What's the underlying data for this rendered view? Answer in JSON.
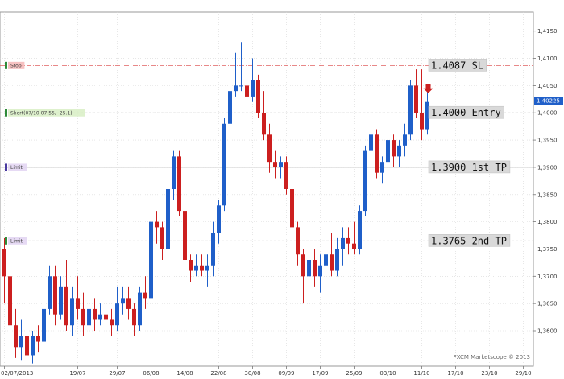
{
  "chart_data": {
    "type": "candlestick",
    "title": "",
    "watermark": "FXCM Marketscope © 2013",
    "ylim": [
      1.3535,
      1.4185
    ],
    "y_ticks": [
      1.36,
      1.365,
      1.37,
      1.375,
      1.38,
      1.385,
      1.39,
      1.395,
      1.4,
      1.405,
      1.41,
      1.415
    ],
    "y_tick_labels": [
      "1,3600",
      "1,3650",
      "1,3700",
      "1,3750",
      "1,3800",
      "1,3850",
      "1,3900",
      "1,3950",
      "1,4000",
      "1,4050",
      "1,4100",
      "1,4150"
    ],
    "x_tick_labels": [
      "02/07/2013",
      "19/07",
      "29/07",
      "06/08",
      "14/08",
      "22/08",
      "30/08",
      "09/09",
      "17/09",
      "25/09",
      "03/10",
      "11/10",
      "17/10",
      "23/10",
      "29/10"
    ],
    "x_tick_index": [
      0,
      13,
      20,
      26,
      32,
      38,
      44,
      50,
      56,
      62,
      68,
      74,
      80,
      86,
      92
    ],
    "n_slots": 95,
    "current_price": "1,40225",
    "current_price_value": 1.40225,
    "colors": {
      "up": "#1f5fc9",
      "down": "#cc1f1f",
      "grid": "#d8d8d8",
      "frame": "#9a9a9a",
      "price_tag": "#1f5fc9"
    },
    "levels": [
      {
        "label": "1.4087 SL",
        "value": 1.4087,
        "line_color": "#e06060",
        "dash": "dash-dot"
      },
      {
        "label": "1.4000 Entry",
        "value": 1.4,
        "line_color": "#999999",
        "dash": "dash"
      },
      {
        "label": "1.3900 1st TP",
        "value": 1.39,
        "line_color": "#bbbbbb",
        "dash": "solid"
      },
      {
        "label": "1.3765 2nd TP",
        "value": 1.3765,
        "line_color": "#bbbbbb",
        "dash": "dash"
      }
    ],
    "orders": [
      {
        "label": "Stop",
        "value": 1.4087,
        "bg": "#f4b6b6",
        "fg": "#c03030",
        "marker": "#2e8b3a"
      },
      {
        "label": "Short(07/10 07:55, -25.1)",
        "value": 1.4,
        "bg": "#d8efc4",
        "fg": "#5a8a3a",
        "marker": "#2e8b3a"
      },
      {
        "label": "Limit",
        "value": 1.39,
        "bg": "#e2d4f2",
        "fg": "#7a5aa0",
        "marker": "#4a3aa0"
      },
      {
        "label": "Limit",
        "value": 1.3765,
        "bg": "#e2d4f2",
        "fg": "#7a5aa0",
        "marker": "#2e8b3a"
      }
    ],
    "candles": [
      [
        1.375,
        1.377,
        1.365,
        1.37
      ],
      [
        1.37,
        1.372,
        1.358,
        1.361
      ],
      [
        1.361,
        1.364,
        1.355,
        1.357
      ],
      [
        1.357,
        1.362,
        1.3545,
        1.359
      ],
      [
        1.359,
        1.36,
        1.354,
        1.3555
      ],
      [
        1.3555,
        1.36,
        1.354,
        1.359
      ],
      [
        1.359,
        1.361,
        1.356,
        1.358
      ],
      [
        1.358,
        1.366,
        1.357,
        1.364
      ],
      [
        1.364,
        1.372,
        1.363,
        1.37
      ],
      [
        1.37,
        1.372,
        1.361,
        1.363
      ],
      [
        1.363,
        1.37,
        1.362,
        1.368
      ],
      [
        1.368,
        1.373,
        1.36,
        1.361
      ],
      [
        1.361,
        1.368,
        1.359,
        1.366
      ],
      [
        1.366,
        1.37,
        1.362,
        1.364
      ],
      [
        1.364,
        1.367,
        1.359,
        1.361
      ],
      [
        1.361,
        1.366,
        1.36,
        1.364
      ],
      [
        1.364,
        1.366,
        1.36,
        1.362
      ],
      [
        1.362,
        1.365,
        1.361,
        1.363
      ],
      [
        1.363,
        1.366,
        1.36,
        1.362
      ],
      [
        1.362,
        1.364,
        1.359,
        1.361
      ],
      [
        1.361,
        1.368,
        1.36,
        1.365
      ],
      [
        1.365,
        1.368,
        1.363,
        1.366
      ],
      [
        1.366,
        1.368,
        1.362,
        1.364
      ],
      [
        1.364,
        1.365,
        1.359,
        1.361
      ],
      [
        1.361,
        1.368,
        1.36,
        1.367
      ],
      [
        1.367,
        1.37,
        1.364,
        1.366
      ],
      [
        1.366,
        1.381,
        1.365,
        1.38
      ],
      [
        1.38,
        1.382,
        1.376,
        1.379
      ],
      [
        1.379,
        1.38,
        1.373,
        1.375
      ],
      [
        1.375,
        1.388,
        1.373,
        1.386
      ],
      [
        1.386,
        1.393,
        1.384,
        1.392
      ],
      [
        1.392,
        1.393,
        1.381,
        1.382
      ],
      [
        1.382,
        1.383,
        1.372,
        1.373
      ],
      [
        1.373,
        1.374,
        1.369,
        1.371
      ],
      [
        1.371,
        1.374,
        1.37,
        1.372
      ],
      [
        1.372,
        1.374,
        1.37,
        1.371
      ],
      [
        1.371,
        1.374,
        1.368,
        1.372
      ],
      [
        1.372,
        1.38,
        1.37,
        1.378
      ],
      [
        1.378,
        1.384,
        1.376,
        1.383
      ],
      [
        1.383,
        1.399,
        1.382,
        1.398
      ],
      [
        1.398,
        1.406,
        1.397,
        1.404
      ],
      [
        1.404,
        1.411,
        1.403,
        1.405
      ],
      [
        1.405,
        1.413,
        1.404,
        1.405
      ],
      [
        1.405,
        1.409,
        1.402,
        1.403
      ],
      [
        1.403,
        1.41,
        1.402,
        1.406
      ],
      [
        1.406,
        1.407,
        1.399,
        1.4
      ],
      [
        1.4,
        1.404,
        1.395,
        1.396
      ],
      [
        1.396,
        1.398,
        1.389,
        1.391
      ],
      [
        1.391,
        1.393,
        1.388,
        1.39
      ],
      [
        1.39,
        1.392,
        1.388,
        1.391
      ],
      [
        1.391,
        1.392,
        1.385,
        1.386
      ],
      [
        1.386,
        1.387,
        1.378,
        1.379
      ],
      [
        1.379,
        1.38,
        1.372,
        1.374
      ],
      [
        1.374,
        1.375,
        1.365,
        1.37
      ],
      [
        1.37,
        1.374,
        1.368,
        1.373
      ],
      [
        1.373,
        1.375,
        1.368,
        1.37
      ],
      [
        1.37,
        1.374,
        1.367,
        1.372
      ],
      [
        1.372,
        1.376,
        1.37,
        1.374
      ],
      [
        1.374,
        1.378,
        1.37,
        1.371
      ],
      [
        1.371,
        1.377,
        1.37,
        1.375
      ],
      [
        1.375,
        1.379,
        1.372,
        1.377
      ],
      [
        1.377,
        1.379,
        1.374,
        1.376
      ],
      [
        1.376,
        1.38,
        1.374,
        1.375
      ],
      [
        1.375,
        1.383,
        1.374,
        1.382
      ],
      [
        1.382,
        1.394,
        1.381,
        1.393
      ],
      [
        1.393,
        1.397,
        1.389,
        1.396
      ],
      [
        1.396,
        1.397,
        1.388,
        1.389
      ],
      [
        1.389,
        1.392,
        1.387,
        1.391
      ],
      [
        1.391,
        1.397,
        1.39,
        1.395
      ],
      [
        1.395,
        1.396,
        1.39,
        1.392
      ],
      [
        1.392,
        1.395,
        1.39,
        1.394
      ],
      [
        1.394,
        1.398,
        1.392,
        1.396
      ],
      [
        1.396,
        1.406,
        1.395,
        1.405
      ],
      [
        1.405,
        1.408,
        1.399,
        1.4
      ],
      [
        1.4,
        1.408,
        1.395,
        1.397
      ],
      [
        1.397,
        1.404,
        1.396,
        1.402
      ]
    ]
  }
}
